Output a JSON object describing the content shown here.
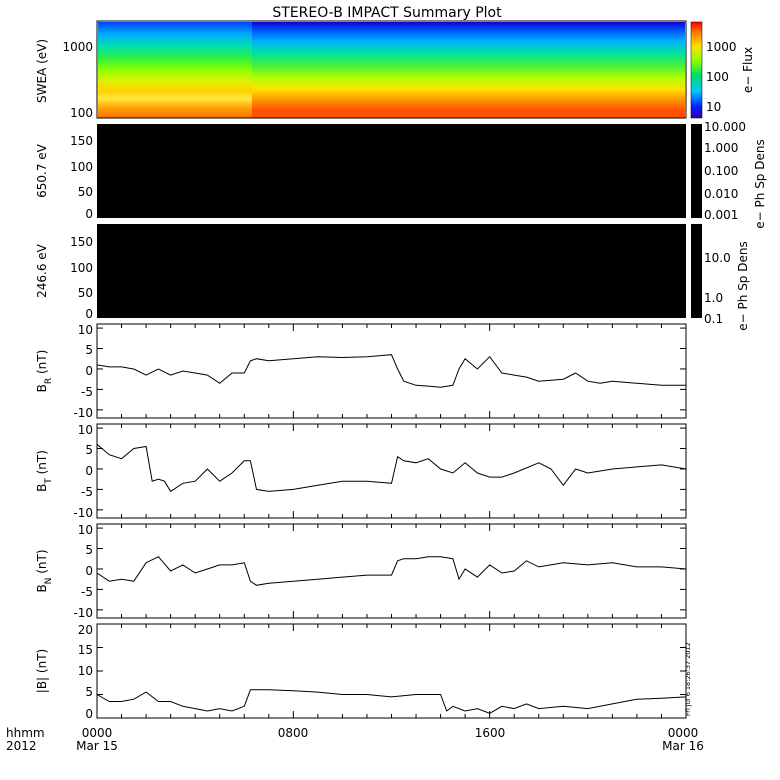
{
  "title": "STEREO-B IMPACT Summary Plot",
  "footer": {
    "left_top": "hhmm",
    "left_bottom": "2012",
    "x_ticks": [
      "0000",
      "0800",
      "1600",
      "0000"
    ],
    "x_dates": [
      "Mar 15",
      "",
      "",
      "Mar 16"
    ]
  },
  "timestamp": "Fri Jul 6 18:26:37 2012",
  "colors": {
    "trace": "#000000",
    "frame": "#000000",
    "background": "#ffffff",
    "panel_fill": "#000000"
  },
  "chart_data": [
    {
      "type": "heatmap",
      "id": "swea",
      "ylabel": "SWEA (eV)",
      "yscale": "log",
      "ylim": [
        90,
        2000
      ],
      "yticks": [
        "100",
        "1000"
      ],
      "colorbar_label": "e− Flux",
      "colorbar_ticks": [
        "10",
        "100",
        "1000"
      ],
      "description_bands": "flux decreases with energy; enhanced low-energy flux before 0500"
    },
    {
      "type": "heatmap",
      "id": "pad650",
      "ylabel": "650.7 eV",
      "ylim": [
        0,
        180
      ],
      "yticks": [
        "0",
        "50",
        "100",
        "150"
      ],
      "colorbar_label": "e− Ph Sp Dens",
      "colorbar_ticks": [
        "10.000",
        "1.000",
        "0.100",
        "0.010",
        "0.001"
      ],
      "values": "all zero / black"
    },
    {
      "type": "heatmap",
      "id": "pad246",
      "ylabel": "246.6 eV",
      "ylim": [
        0,
        180
      ],
      "yticks": [
        "0",
        "50",
        "100",
        "150"
      ],
      "colorbar_label": "e− Ph Sp Dens",
      "colorbar_ticks": [
        "10.0",
        "1.0",
        "0.1"
      ],
      "values": "all zero / black"
    },
    {
      "type": "line",
      "id": "br",
      "ylabel_main": "B",
      "ylabel_sub": "R",
      "ylabel_unit": " (nT)",
      "ylim": [
        -12,
        11
      ],
      "yticks": [
        "10",
        "5",
        "0",
        "-5",
        "-10"
      ],
      "x_hours": [
        0,
        0.5,
        1,
        1.5,
        2,
        2.5,
        3,
        3.5,
        4,
        4.5,
        5,
        5.5,
        6,
        6.25,
        6.5,
        7,
        8,
        9,
        10,
        11,
        12,
        12.25,
        12.5,
        13,
        13.5,
        14,
        14.5,
        14.75,
        15,
        15.5,
        16,
        16.5,
        17,
        17.5,
        18,
        19,
        19.5,
        20,
        20.5,
        21,
        22,
        23,
        24
      ],
      "values": [
        1,
        0.5,
        0.5,
        0,
        -1.5,
        0,
        -1.5,
        -0.5,
        -1,
        -1.5,
        -3.5,
        -1,
        -1,
        2,
        2.5,
        2,
        2.5,
        3,
        2.8,
        3,
        3.5,
        0,
        -3,
        -4,
        -4.2,
        -4.5,
        -4,
        0,
        2.5,
        0,
        3,
        -1,
        -1.5,
        -2,
        -3,
        -2.5,
        -1,
        -3,
        -3.5,
        -3,
        -3.5,
        -4,
        -4
      ]
    },
    {
      "type": "line",
      "id": "bt",
      "ylabel_main": "B",
      "ylabel_sub": "T",
      "ylabel_unit": " (nT)",
      "ylim": [
        -12,
        11
      ],
      "yticks": [
        "10",
        "5",
        "0",
        "-5",
        "-10"
      ],
      "x_hours": [
        0,
        0.5,
        1,
        1.5,
        2,
        2.25,
        2.5,
        2.75,
        3,
        3.5,
        4,
        4.5,
        5,
        5.5,
        6,
        6.25,
        6.5,
        7,
        8,
        9,
        10,
        11,
        12,
        12.25,
        12.5,
        13,
        13.5,
        14,
        14.5,
        15,
        15.5,
        16,
        16.5,
        17,
        18,
        18.5,
        19,
        19.5,
        20,
        21,
        22,
        23,
        24
      ],
      "values": [
        6,
        3.5,
        2.5,
        5,
        5.5,
        -3,
        -2.5,
        -3,
        -5.5,
        -3.5,
        -3,
        0,
        -3,
        -1,
        2,
        2,
        -5,
        -5.5,
        -5,
        -4,
        -3,
        -3,
        -3.5,
        3,
        2,
        1.5,
        2.5,
        0,
        -1,
        1.5,
        -1,
        -2,
        -2,
        -1,
        1.5,
        0,
        -4,
        0,
        -1,
        0,
        0.5,
        1,
        0
      ]
    },
    {
      "type": "line",
      "id": "bn",
      "ylabel_main": "B",
      "ylabel_sub": "N",
      "ylabel_unit": " (nT)",
      "ylim": [
        -12,
        11
      ],
      "yticks": [
        "10",
        "5",
        "0",
        "-5",
        "-10"
      ],
      "x_hours": [
        0,
        0.5,
        1,
        1.5,
        2,
        2.5,
        3,
        3.5,
        4,
        4.5,
        5,
        5.5,
        6,
        6.25,
        6.5,
        7,
        8,
        9,
        10,
        11,
        12,
        12.25,
        12.5,
        13,
        13.5,
        14,
        14.5,
        14.75,
        15,
        15.5,
        16,
        16.5,
        17,
        17.5,
        18,
        19,
        20,
        21,
        22,
        23,
        24
      ],
      "values": [
        -1,
        -3,
        -2.5,
        -3,
        1.5,
        3,
        -0.5,
        1,
        -1,
        0,
        1,
        1,
        1.5,
        -3,
        -4,
        -3.5,
        -3,
        -2.5,
        -2,
        -1.5,
        -1.5,
        2,
        2.5,
        2.5,
        3,
        3,
        2.5,
        -2.5,
        0,
        -2,
        1,
        -1,
        -0.5,
        2,
        0.5,
        1.5,
        1,
        1.5,
        0.5,
        0.5,
        0
      ]
    },
    {
      "type": "line",
      "id": "bmag",
      "ylabel_main": "|B| (nT)",
      "ylim": [
        0,
        20
      ],
      "yticks": [
        "20",
        "15",
        "10",
        "5",
        "0"
      ],
      "x_hours": [
        0,
        0.5,
        1,
        1.5,
        2,
        2.5,
        3,
        3.5,
        4,
        4.5,
        5,
        5.5,
        6,
        6.25,
        7,
        8,
        9,
        10,
        11,
        12,
        13,
        14,
        14.25,
        14.5,
        15,
        15.5,
        16,
        16.5,
        17,
        17.5,
        18,
        19,
        20,
        21,
        22,
        23,
        24
      ],
      "values": [
        5,
        3.5,
        3.5,
        4,
        5.5,
        3.5,
        3.5,
        2.5,
        2,
        1.5,
        2,
        1.5,
        2.5,
        6,
        6,
        5.8,
        5.5,
        5,
        5,
        4.5,
        5,
        5,
        1.5,
        2.5,
        1.5,
        2,
        1,
        2.5,
        2,
        3,
        2,
        2.5,
        2,
        3,
        4,
        4.2,
        4.5
      ]
    }
  ]
}
